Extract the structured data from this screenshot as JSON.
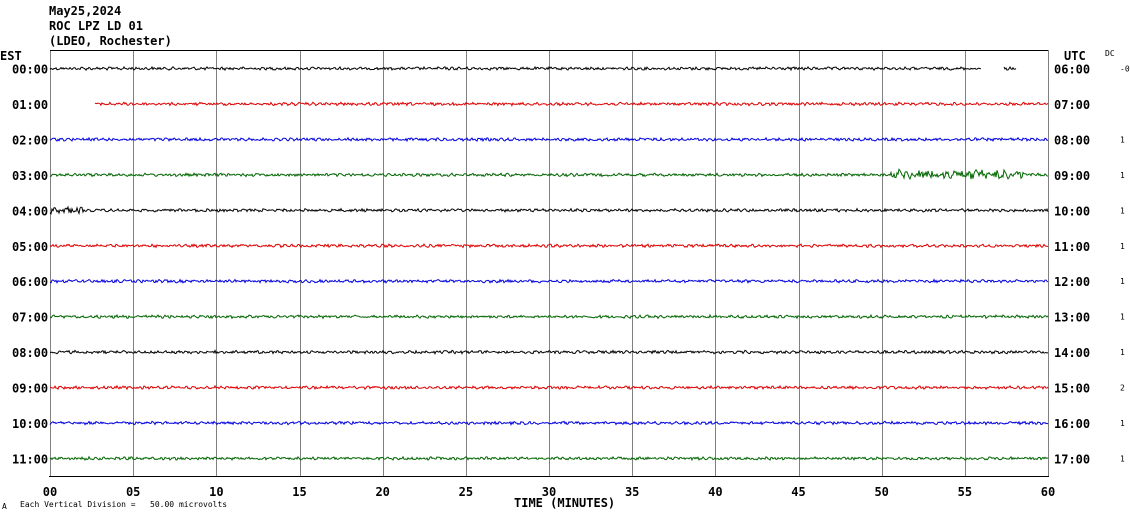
{
  "header": {
    "date": "May25,2024",
    "station": "ROC LPZ LD 01",
    "network": "(LDEO, Rochester)"
  },
  "left_tz": "EST",
  "right_tz": "UTC",
  "dc_header": "DC",
  "footer": {
    "division_note": "Each Vertical Division =   50.00 microvolts",
    "corner_mark": "A"
  },
  "colors": [
    "#000000",
    "#dd0000",
    "#0000dd",
    "#006600"
  ],
  "chart_data": {
    "type": "line",
    "title": "",
    "xlabel": "TIME (MINUTES)",
    "xlim": [
      0,
      60
    ],
    "x_ticks": [
      "00",
      "05",
      "10",
      "15",
      "20",
      "25",
      "30",
      "35",
      "40",
      "45",
      "50",
      "55",
      "60"
    ],
    "rows": [
      {
        "est": "00:00",
        "utc": "06:00",
        "dc": "-0",
        "start_min": 0,
        "end_min": 58.1,
        "gap": [
          56,
          57.3
        ]
      },
      {
        "est": "01:00",
        "utc": "07:00",
        "dc": "",
        "start_min": 2.7,
        "end_min": 60
      },
      {
        "est": "02:00",
        "utc": "08:00",
        "dc": "1",
        "start_min": 0,
        "end_min": 60
      },
      {
        "est": "03:00",
        "utc": "09:00",
        "dc": "1",
        "start_min": 0,
        "end_min": 60,
        "event": [
          50.5,
          58.5
        ]
      },
      {
        "est": "04:00",
        "utc": "10:00",
        "dc": "1",
        "start_min": 0,
        "end_min": 60,
        "burst": [
          0,
          2
        ]
      },
      {
        "est": "05:00",
        "utc": "11:00",
        "dc": "1",
        "start_min": 0,
        "end_min": 60
      },
      {
        "est": "06:00",
        "utc": "12:00",
        "dc": "1",
        "start_min": 0,
        "end_min": 60
      },
      {
        "est": "07:00",
        "utc": "13:00",
        "dc": "1",
        "start_min": 0,
        "end_min": 60
      },
      {
        "est": "08:00",
        "utc": "14:00",
        "dc": "1",
        "start_min": 0,
        "end_min": 60
      },
      {
        "est": "09:00",
        "utc": "15:00",
        "dc": "2",
        "start_min": 0,
        "end_min": 60
      },
      {
        "est": "10:00",
        "utc": "16:00",
        "dc": "1",
        "start_min": 0,
        "end_min": 60
      },
      {
        "est": "11:00",
        "utc": "17:00",
        "dc": "1",
        "start_min": 0,
        "end_min": 60
      }
    ]
  }
}
